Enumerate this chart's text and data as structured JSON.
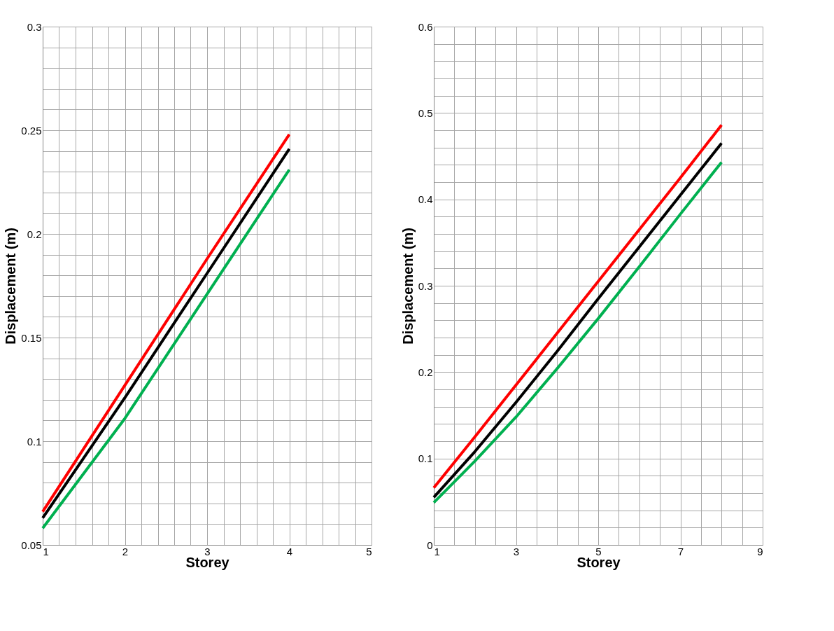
{
  "chart_data": [
    {
      "type": "line",
      "xlabel": "Storey",
      "ylabel": "Displacement (m)",
      "x": [
        1,
        2,
        3,
        4
      ],
      "xlim": [
        1,
        5
      ],
      "ylim": [
        0.05,
        0.3
      ],
      "grid": true,
      "legend": false,
      "marker": "none",
      "line_style": "solid",
      "xticks": [
        1,
        {
          "value": 1.2,
          "label": null
        },
        {
          "value": 1.4,
          "label": null
        },
        {
          "value": 1.6,
          "label": null
        },
        {
          "value": 1.8,
          "label": null
        },
        2,
        {
          "value": 2.2,
          "label": null
        },
        {
          "value": 2.4,
          "label": null
        },
        {
          "value": 2.6,
          "label": null
        },
        {
          "value": 2.8,
          "label": null
        },
        3,
        {
          "value": 3.2,
          "label": null
        },
        {
          "value": 3.4,
          "label": null
        },
        {
          "value": 3.6,
          "label": null
        },
        {
          "value": 3.8,
          "label": null
        },
        4,
        {
          "value": 4.2,
          "label": null
        },
        {
          "value": 4.4,
          "label": null
        },
        {
          "value": 4.6,
          "label": null
        },
        {
          "value": 4.8,
          "label": null
        },
        5
      ],
      "yticks": [
        0.05,
        {
          "value": 0.06,
          "label": null
        },
        {
          "value": 0.07,
          "label": null
        },
        {
          "value": 0.08,
          "label": null
        },
        {
          "value": 0.09,
          "label": null
        },
        0.1,
        {
          "value": 0.11,
          "label": null
        },
        {
          "value": 0.12,
          "label": null
        },
        {
          "value": 0.13,
          "label": null
        },
        {
          "value": 0.14,
          "label": null
        },
        0.15,
        {
          "value": 0.16,
          "label": null
        },
        {
          "value": 0.17,
          "label": null
        },
        {
          "value": 0.18,
          "label": null
        },
        {
          "value": 0.19,
          "label": null
        },
        0.2,
        {
          "value": 0.21,
          "label": null
        },
        {
          "value": 0.22,
          "label": null
        },
        {
          "value": 0.23,
          "label": null
        },
        {
          "value": 0.24,
          "label": null
        },
        0.25,
        {
          "value": 0.26,
          "label": null
        },
        {
          "value": 0.27,
          "label": null
        },
        {
          "value": 0.28,
          "label": null
        },
        {
          "value": 0.29,
          "label": null
        },
        0.3
      ],
      "series": [
        {
          "color": "#ff0000",
          "values": [
            0.066,
            0.127,
            0.188,
            0.248
          ]
        },
        {
          "color": "#000000",
          "values": [
            0.063,
            0.121,
            0.181,
            0.241
          ]
        },
        {
          "color": "#00b050",
          "values": [
            0.058,
            0.111,
            0.171,
            0.231
          ]
        }
      ]
    },
    {
      "type": "line",
      "xlabel": "Storey",
      "ylabel": "Displacement (m)",
      "x": [
        1,
        2,
        3,
        4,
        5,
        6,
        7,
        8
      ],
      "xlim": [
        1,
        9
      ],
      "ylim": [
        0,
        0.6
      ],
      "grid": true,
      "legend": false,
      "marker": "none",
      "line_style": "solid",
      "xticks": [
        1,
        {
          "value": 1.5,
          "label": null
        },
        {
          "value": 2,
          "label": null
        },
        {
          "value": 2.5,
          "label": null
        },
        3,
        {
          "value": 3.5,
          "label": null
        },
        {
          "value": 4,
          "label": null
        },
        {
          "value": 4.5,
          "label": null
        },
        5,
        {
          "value": 5.5,
          "label": null
        },
        {
          "value": 6,
          "label": null
        },
        {
          "value": 6.5,
          "label": null
        },
        7,
        {
          "value": 7.5,
          "label": null
        },
        {
          "value": 8,
          "label": null
        },
        {
          "value": 8.5,
          "label": null
        },
        9
      ],
      "yticks": [
        0,
        {
          "value": 0.02,
          "label": null
        },
        {
          "value": 0.04,
          "label": null
        },
        {
          "value": 0.06,
          "label": null
        },
        {
          "value": 0.08,
          "label": null
        },
        0.1,
        {
          "value": 0.12,
          "label": null
        },
        {
          "value": 0.14,
          "label": null
        },
        {
          "value": 0.16,
          "label": null
        },
        {
          "value": 0.18,
          "label": null
        },
        0.2,
        {
          "value": 0.22,
          "label": null
        },
        {
          "value": 0.24,
          "label": null
        },
        {
          "value": 0.26,
          "label": null
        },
        {
          "value": 0.28,
          "label": null
        },
        0.3,
        {
          "value": 0.32,
          "label": null
        },
        {
          "value": 0.34,
          "label": null
        },
        {
          "value": 0.36,
          "label": null
        },
        {
          "value": 0.38,
          "label": null
        },
        0.4,
        {
          "value": 0.42,
          "label": null
        },
        {
          "value": 0.44,
          "label": null
        },
        {
          "value": 0.46,
          "label": null
        },
        {
          "value": 0.48,
          "label": null
        },
        0.5,
        {
          "value": 0.52,
          "label": null
        },
        {
          "value": 0.54,
          "label": null
        },
        {
          "value": 0.56,
          "label": null
        },
        {
          "value": 0.58,
          "label": null
        },
        0.6
      ],
      "series": [
        {
          "color": "#ff0000",
          "values": [
            0.066,
            0.125,
            0.185,
            0.245,
            0.305,
            0.365,
            0.425,
            0.486
          ]
        },
        {
          "color": "#000000",
          "values": [
            0.055,
            0.108,
            0.165,
            0.224,
            0.285,
            0.345,
            0.405,
            0.465
          ]
        },
        {
          "color": "#00b050",
          "values": [
            0.049,
            0.097,
            0.148,
            0.204,
            0.262,
            0.322,
            0.383,
            0.443
          ]
        }
      ]
    }
  ]
}
